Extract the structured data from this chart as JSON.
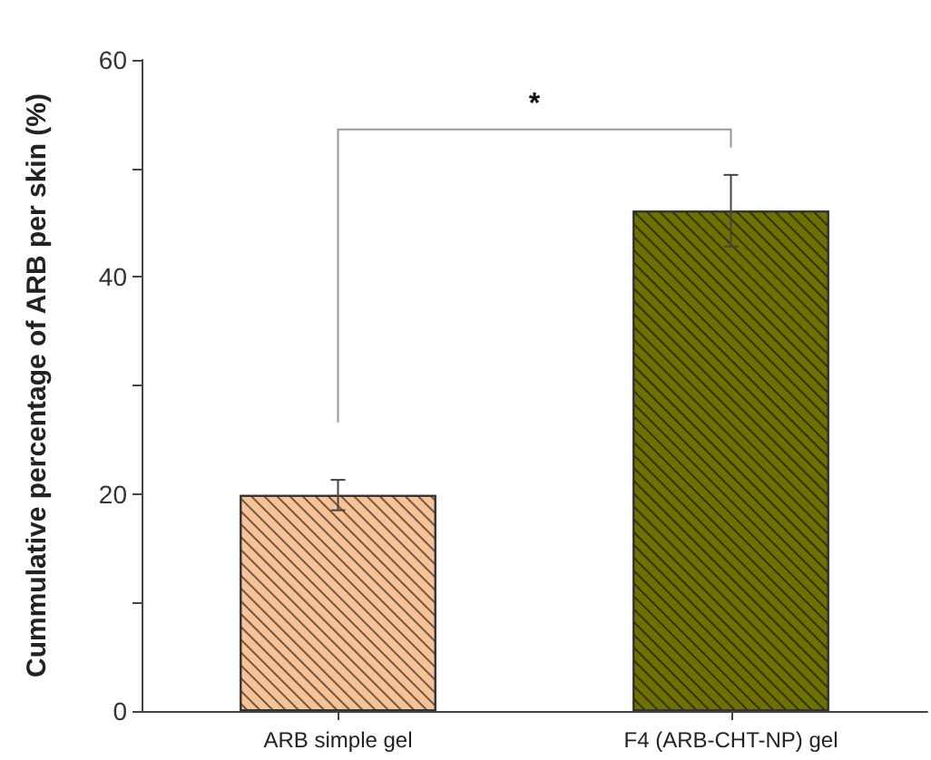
{
  "chart_data": {
    "type": "bar",
    "ylabel": "Cummulative percentage of ARB per skin (%)",
    "categories": [
      "ARB simple gel",
      "F4 (ARB-CHT-NP) gel"
    ],
    "values": [
      19.9,
      46.1
    ],
    "colors": [
      "#f7c295",
      "#6e7000"
    ],
    "errors": [
      1.4,
      3.3
    ],
    "ylim": [
      0,
      60
    ],
    "yticks": [
      0,
      {
        "value": 10,
        "label": null
      },
      20,
      {
        "value": 30,
        "label": null
      },
      40,
      {
        "value": 50,
        "label": null
      },
      60
    ],
    "annotations": [
      "*"
    ],
    "grid": false
  }
}
